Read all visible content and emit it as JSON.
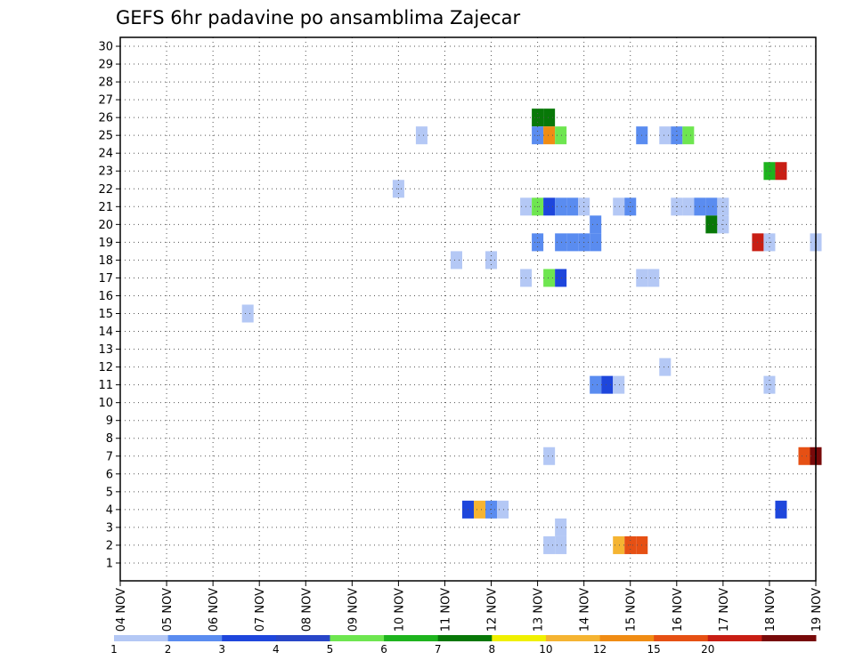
{
  "chart_data": {
    "type": "heatmap",
    "title": "GEFS 6hr padavine po ansamblima Zajecar",
    "x_ticks": [
      "04 NOV",
      "05 NOV",
      "06 NOV",
      "07 NOV",
      "08 NOV",
      "09 NOV",
      "10 NOV",
      "11 NOV",
      "12 NOV",
      "13 NOV",
      "14 NOV",
      "15 NOV",
      "16 NOV",
      "17 NOV",
      "18 NOV",
      "19 NOV"
    ],
    "x_unit": "6h steps from 04 NOV 00Z",
    "x_range": [
      0,
      60
    ],
    "y_ticks": [
      1,
      2,
      3,
      4,
      5,
      6,
      7,
      8,
      9,
      10,
      11,
      12,
      13,
      14,
      15,
      16,
      17,
      18,
      19,
      20,
      21,
      22,
      23,
      24,
      25,
      26,
      27,
      28,
      29,
      30
    ],
    "y_range": [
      0,
      30.5
    ],
    "grid": true,
    "colorbar": {
      "levels": [
        "1",
        "2",
        "3",
        "4",
        "5",
        "6",
        "7",
        "8",
        "10",
        "12",
        "15",
        "20",
        ""
      ],
      "colors": [
        "#b4c8f5",
        "#5a8cf0",
        "#1e46dc",
        "#2846c8",
        "#6ee650",
        "#1eb41e",
        "#087808",
        "#f0f000",
        "#f5b432",
        "#f08c14",
        "#e65014",
        "#c81e14",
        "#780a0a"
      ]
    },
    "cells": [
      {
        "t": 36,
        "m": 26,
        "c": 6
      },
      {
        "t": 37,
        "m": 26,
        "c": 6
      },
      {
        "t": 26,
        "m": 25,
        "c": 0
      },
      {
        "t": 36,
        "m": 25,
        "c": 1
      },
      {
        "t": 37,
        "m": 25,
        "c": 9
      },
      {
        "t": 38,
        "m": 25,
        "c": 4
      },
      {
        "t": 45,
        "m": 25,
        "c": 1
      },
      {
        "t": 47,
        "m": 25,
        "c": 0
      },
      {
        "t": 48,
        "m": 25,
        "c": 1
      },
      {
        "t": 49,
        "m": 25,
        "c": 4
      },
      {
        "t": 56,
        "m": 23,
        "c": 5
      },
      {
        "t": 57,
        "m": 23,
        "c": 11
      },
      {
        "t": 24,
        "m": 22,
        "c": 0
      },
      {
        "t": 35,
        "m": 21,
        "c": 0
      },
      {
        "t": 36,
        "m": 21,
        "c": 4
      },
      {
        "t": 37,
        "m": 21,
        "c": 2
      },
      {
        "t": 38,
        "m": 21,
        "c": 1
      },
      {
        "t": 39,
        "m": 21,
        "c": 1
      },
      {
        "t": 40,
        "m": 21,
        "c": 0
      },
      {
        "t": 43,
        "m": 21,
        "c": 0
      },
      {
        "t": 44,
        "m": 21,
        "c": 1
      },
      {
        "t": 48,
        "m": 21,
        "c": 0
      },
      {
        "t": 49,
        "m": 21,
        "c": 0
      },
      {
        "t": 50,
        "m": 21,
        "c": 1
      },
      {
        "t": 51,
        "m": 21,
        "c": 1
      },
      {
        "t": 52,
        "m": 21,
        "c": 0
      },
      {
        "t": 41,
        "m": 20,
        "c": 1
      },
      {
        "t": 51,
        "m": 20,
        "c": 6
      },
      {
        "t": 52,
        "m": 20,
        "c": 0
      },
      {
        "t": 36,
        "m": 19,
        "c": 1
      },
      {
        "t": 38,
        "m": 19,
        "c": 1
      },
      {
        "t": 39,
        "m": 19,
        "c": 1
      },
      {
        "t": 40,
        "m": 19,
        "c": 1
      },
      {
        "t": 41,
        "m": 19,
        "c": 1
      },
      {
        "t": 55,
        "m": 19,
        "c": 11
      },
      {
        "t": 56,
        "m": 19,
        "c": 0
      },
      {
        "t": 60,
        "m": 19,
        "c": 0
      },
      {
        "t": 29,
        "m": 18,
        "c": 0
      },
      {
        "t": 32,
        "m": 18,
        "c": 0
      },
      {
        "t": 35,
        "m": 17,
        "c": 0
      },
      {
        "t": 37,
        "m": 17,
        "c": 4
      },
      {
        "t": 38,
        "m": 17,
        "c": 2
      },
      {
        "t": 45,
        "m": 17,
        "c": 0
      },
      {
        "t": 46,
        "m": 17,
        "c": 0
      },
      {
        "t": 11,
        "m": 15,
        "c": 0
      },
      {
        "t": 47,
        "m": 12,
        "c": 0
      },
      {
        "t": 41,
        "m": 11,
        "c": 1
      },
      {
        "t": 42,
        "m": 11,
        "c": 2
      },
      {
        "t": 43,
        "m": 11,
        "c": 0
      },
      {
        "t": 56,
        "m": 11,
        "c": 0
      },
      {
        "t": 37,
        "m": 7,
        "c": 0
      },
      {
        "t": 59,
        "m": 7,
        "c": 10
      },
      {
        "t": 60,
        "m": 7,
        "c": 12
      },
      {
        "t": 30,
        "m": 4,
        "c": 2
      },
      {
        "t": 31,
        "m": 4,
        "c": 8
      },
      {
        "t": 32,
        "m": 4,
        "c": 1
      },
      {
        "t": 33,
        "m": 4,
        "c": 0
      },
      {
        "t": 57,
        "m": 4,
        "c": 2
      },
      {
        "t": 38,
        "m": 3,
        "c": 0
      },
      {
        "t": 37,
        "m": 2,
        "c": 0
      },
      {
        "t": 38,
        "m": 2,
        "c": 0
      },
      {
        "t": 43,
        "m": 2,
        "c": 8
      },
      {
        "t": 44,
        "m": 2,
        "c": 10
      },
      {
        "t": 45,
        "m": 2,
        "c": 10
      }
    ]
  }
}
